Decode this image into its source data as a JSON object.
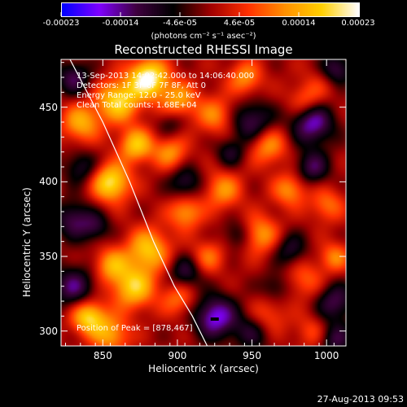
{
  "chart_data": {
    "type": "heatmap",
    "title": "Reconstructed RHESSI Image",
    "xlabel": "Heliocentric X (arcsec)",
    "ylabel": "Heliocentric Y (arcsec)",
    "x_ticks": [
      "850",
      "900",
      "950",
      "1000"
    ],
    "y_ticks": [
      "300",
      "350",
      "400",
      "450"
    ],
    "xlim": [
      822,
      1013
    ],
    "ylim": [
      290,
      482
    ],
    "colorbar": {
      "tick_labels": [
        "-0.00023",
        "-0.00014",
        "-4.6e-05",
        "4.6e-05",
        "0.00014",
        "0.00023"
      ],
      "range": [
        -0.00023,
        0.00023
      ],
      "units_label": "(photons cm⁻² s⁻¹ asec⁻²)",
      "colormap": [
        "#0000ff",
        "#8000ff",
        "#400040",
        "#000000",
        "#a00000",
        "#ff3000",
        "#ff9000",
        "#ffd000",
        "#ffffff"
      ]
    },
    "annotations": [
      "13-Sep-2013 14:02:42.000 to 14:06:40.000",
      "Detectors: 1F 3F 6F 7F 8F, Att 0",
      "Energy Range: 12.0 - 25.0 keV",
      "Clean    Total counts: 1.68E+04"
    ],
    "peak_label": "Position of Peak = [878,467]",
    "peak": [
      878,
      467
    ],
    "limb_curve": [
      [
        828,
        482
      ],
      [
        850,
        440
      ],
      [
        868,
        400
      ],
      [
        884,
        360
      ],
      [
        898,
        330
      ],
      [
        910,
        310
      ],
      [
        920,
        290
      ]
    ],
    "blobs": [
      {
        "x": 880,
        "y": 470,
        "v": 1.0,
        "s": 9
      },
      {
        "x": 860,
        "y": 455,
        "v": 0.8,
        "s": 10
      },
      {
        "x": 900,
        "y": 455,
        "v": 0.55,
        "s": 9
      },
      {
        "x": 835,
        "y": 440,
        "v": 0.6,
        "s": 9
      },
      {
        "x": 872,
        "y": 425,
        "v": 0.7,
        "s": 8
      },
      {
        "x": 855,
        "y": 400,
        "v": 0.85,
        "s": 9
      },
      {
        "x": 895,
        "y": 420,
        "v": 0.5,
        "s": 8
      },
      {
        "x": 925,
        "y": 445,
        "v": 0.45,
        "s": 9
      },
      {
        "x": 945,
        "y": 470,
        "v": 0.5,
        "s": 8
      },
      {
        "x": 960,
        "y": 425,
        "v": 0.55,
        "s": 9
      },
      {
        "x": 985,
        "y": 455,
        "v": 0.4,
        "s": 8
      },
      {
        "x": 1000,
        "y": 470,
        "v": 0.35,
        "s": 9
      },
      {
        "x": 930,
        "y": 395,
        "v": 0.5,
        "s": 9
      },
      {
        "x": 905,
        "y": 380,
        "v": 0.55,
        "s": 8
      },
      {
        "x": 975,
        "y": 395,
        "v": 0.5,
        "s": 8
      },
      {
        "x": 1000,
        "y": 385,
        "v": 0.4,
        "s": 8
      },
      {
        "x": 955,
        "y": 365,
        "v": 0.55,
        "s": 9
      },
      {
        "x": 880,
        "y": 355,
        "v": 0.7,
        "s": 10
      },
      {
        "x": 855,
        "y": 345,
        "v": 0.55,
        "s": 8
      },
      {
        "x": 920,
        "y": 350,
        "v": 0.4,
        "s": 8
      },
      {
        "x": 870,
        "y": 330,
        "v": 0.75,
        "s": 10
      },
      {
        "x": 900,
        "y": 322,
        "v": 0.4,
        "s": 8
      },
      {
        "x": 985,
        "y": 335,
        "v": 0.35,
        "s": 9
      },
      {
        "x": 1005,
        "y": 350,
        "v": 0.45,
        "s": 7
      },
      {
        "x": 840,
        "y": 310,
        "v": 0.8,
        "s": 8
      },
      {
        "x": 855,
        "y": 298,
        "v": 0.55,
        "s": 9
      },
      {
        "x": 960,
        "y": 310,
        "v": 0.35,
        "s": 9
      },
      {
        "x": 990,
        "y": 300,
        "v": 0.3,
        "s": 8
      },
      {
        "x": 950,
        "y": 440,
        "v": -0.55,
        "s": 10
      },
      {
        "x": 990,
        "y": 440,
        "v": -0.7,
        "s": 10
      },
      {
        "x": 1005,
        "y": 475,
        "v": -0.7,
        "s": 8
      },
      {
        "x": 990,
        "y": 410,
        "v": -0.5,
        "s": 8
      },
      {
        "x": 830,
        "y": 470,
        "v": -0.5,
        "s": 8
      },
      {
        "x": 835,
        "y": 410,
        "v": -0.4,
        "s": 8
      },
      {
        "x": 830,
        "y": 375,
        "v": -0.5,
        "s": 9
      },
      {
        "x": 845,
        "y": 370,
        "v": -0.35,
        "s": 7
      },
      {
        "x": 905,
        "y": 400,
        "v": -0.45,
        "s": 8
      },
      {
        "x": 895,
        "y": 440,
        "v": -0.3,
        "s": 7
      },
      {
        "x": 935,
        "y": 420,
        "v": -0.35,
        "s": 7
      },
      {
        "x": 940,
        "y": 365,
        "v": -0.35,
        "s": 7
      },
      {
        "x": 925,
        "y": 310,
        "v": -0.75,
        "s": 10
      },
      {
        "x": 950,
        "y": 300,
        "v": -0.4,
        "s": 9
      },
      {
        "x": 830,
        "y": 330,
        "v": -0.55,
        "s": 10
      },
      {
        "x": 905,
        "y": 340,
        "v": -0.45,
        "s": 8
      },
      {
        "x": 975,
        "y": 355,
        "v": -0.4,
        "s": 8
      },
      {
        "x": 1005,
        "y": 320,
        "v": -0.5,
        "s": 9
      },
      {
        "x": 1005,
        "y": 295,
        "v": -0.45,
        "s": 8
      },
      {
        "x": 965,
        "y": 330,
        "v": -0.3,
        "s": 7
      }
    ]
  },
  "timestamp": "27-Aug-2013 09:53"
}
